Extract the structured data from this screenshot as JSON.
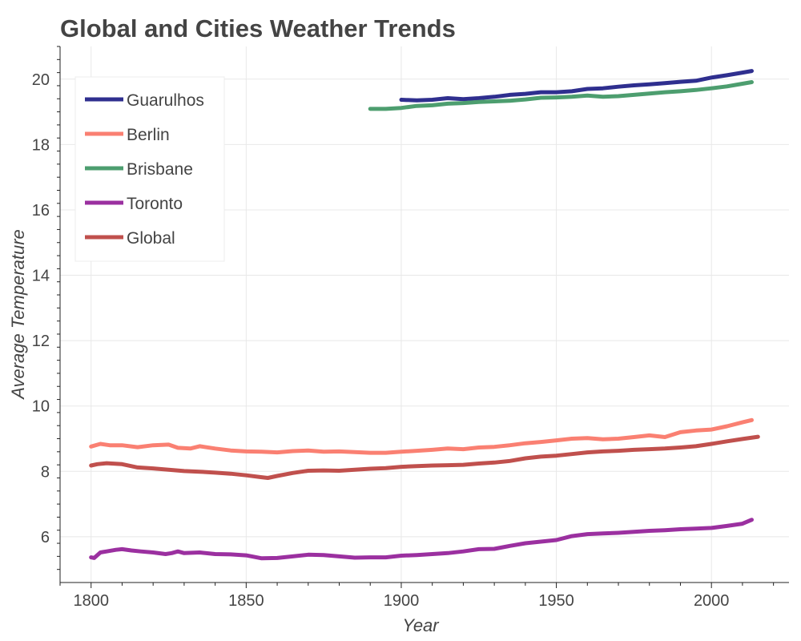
{
  "chart_data": {
    "type": "line",
    "title": "Global and Cities Weather Trends",
    "xlabel": "Year",
    "ylabel": "Average Temperature",
    "xlim": [
      1790,
      2025
    ],
    "ylim": [
      4.6,
      21.0
    ],
    "grid": true,
    "legend_position": "top-left",
    "x_ticks": [
      1800,
      1850,
      1900,
      1950,
      2000
    ],
    "y_ticks": [
      6,
      8,
      10,
      12,
      14,
      16,
      18,
      20
    ],
    "series": [
      {
        "name": "Guarulhos",
        "color": "#2f2f8f",
        "points": [
          [
            1900,
            19.37
          ],
          [
            1905,
            19.35
          ],
          [
            1910,
            19.37
          ],
          [
            1915,
            19.42
          ],
          [
            1920,
            19.39
          ],
          [
            1925,
            19.42
          ],
          [
            1930,
            19.46
          ],
          [
            1935,
            19.52
          ],
          [
            1940,
            19.55
          ],
          [
            1945,
            19.6
          ],
          [
            1950,
            19.6
          ],
          [
            1955,
            19.63
          ],
          [
            1960,
            19.7
          ],
          [
            1965,
            19.72
          ],
          [
            1970,
            19.77
          ],
          [
            1975,
            19.81
          ],
          [
            1980,
            19.84
          ],
          [
            1985,
            19.88
          ],
          [
            1990,
            19.92
          ],
          [
            1995,
            19.95
          ],
          [
            2000,
            20.05
          ],
          [
            2005,
            20.12
          ],
          [
            2010,
            20.2
          ],
          [
            2013,
            20.25
          ]
        ]
      },
      {
        "name": "Berlin",
        "color": "#fa8072",
        "points": [
          [
            1800,
            8.76
          ],
          [
            1803,
            8.84
          ],
          [
            1806,
            8.8
          ],
          [
            1810,
            8.8
          ],
          [
            1815,
            8.74
          ],
          [
            1820,
            8.8
          ],
          [
            1825,
            8.82
          ],
          [
            1828,
            8.72
          ],
          [
            1832,
            8.7
          ],
          [
            1835,
            8.77
          ],
          [
            1840,
            8.7
          ],
          [
            1845,
            8.64
          ],
          [
            1850,
            8.61
          ],
          [
            1855,
            8.6
          ],
          [
            1860,
            8.58
          ],
          [
            1865,
            8.62
          ],
          [
            1870,
            8.64
          ],
          [
            1875,
            8.6
          ],
          [
            1880,
            8.61
          ],
          [
            1885,
            8.59
          ],
          [
            1890,
            8.57
          ],
          [
            1895,
            8.57
          ],
          [
            1900,
            8.6
          ],
          [
            1905,
            8.63
          ],
          [
            1910,
            8.66
          ],
          [
            1915,
            8.7
          ],
          [
            1920,
            8.68
          ],
          [
            1925,
            8.73
          ],
          [
            1930,
            8.75
          ],
          [
            1935,
            8.8
          ],
          [
            1940,
            8.86
          ],
          [
            1945,
            8.9
          ],
          [
            1950,
            8.95
          ],
          [
            1955,
            9.0
          ],
          [
            1960,
            9.02
          ],
          [
            1965,
            8.98
          ],
          [
            1970,
            9.0
          ],
          [
            1975,
            9.05
          ],
          [
            1980,
            9.1
          ],
          [
            1985,
            9.05
          ],
          [
            1990,
            9.2
          ],
          [
            1995,
            9.25
          ],
          [
            2000,
            9.28
          ],
          [
            2005,
            9.38
          ],
          [
            2010,
            9.5
          ],
          [
            2013,
            9.57
          ]
        ]
      },
      {
        "name": "Brisbane",
        "color": "#4d9e6f",
        "points": [
          [
            1890,
            19.09
          ],
          [
            1895,
            19.09
          ],
          [
            1900,
            19.12
          ],
          [
            1905,
            19.18
          ],
          [
            1910,
            19.2
          ],
          [
            1915,
            19.25
          ],
          [
            1920,
            19.27
          ],
          [
            1925,
            19.3
          ],
          [
            1930,
            19.32
          ],
          [
            1935,
            19.34
          ],
          [
            1940,
            19.38
          ],
          [
            1945,
            19.43
          ],
          [
            1950,
            19.44
          ],
          [
            1955,
            19.46
          ],
          [
            1960,
            19.5
          ],
          [
            1965,
            19.46
          ],
          [
            1970,
            19.48
          ],
          [
            1975,
            19.52
          ],
          [
            1980,
            19.56
          ],
          [
            1985,
            19.6
          ],
          [
            1990,
            19.63
          ],
          [
            1995,
            19.67
          ],
          [
            2000,
            19.72
          ],
          [
            2005,
            19.78
          ],
          [
            2010,
            19.86
          ],
          [
            2013,
            19.91
          ]
        ]
      },
      {
        "name": "Toronto",
        "color": "#9b30a0",
        "points": [
          [
            1800,
            5.37
          ],
          [
            1801,
            5.35
          ],
          [
            1803,
            5.52
          ],
          [
            1805,
            5.55
          ],
          [
            1808,
            5.6
          ],
          [
            1810,
            5.62
          ],
          [
            1813,
            5.58
          ],
          [
            1816,
            5.55
          ],
          [
            1820,
            5.52
          ],
          [
            1824,
            5.47
          ],
          [
            1826,
            5.5
          ],
          [
            1828,
            5.55
          ],
          [
            1830,
            5.5
          ],
          [
            1835,
            5.52
          ],
          [
            1840,
            5.47
          ],
          [
            1845,
            5.46
          ],
          [
            1850,
            5.43
          ],
          [
            1855,
            5.34
          ],
          [
            1860,
            5.35
          ],
          [
            1865,
            5.4
          ],
          [
            1870,
            5.45
          ],
          [
            1875,
            5.44
          ],
          [
            1880,
            5.4
          ],
          [
            1885,
            5.36
          ],
          [
            1890,
            5.37
          ],
          [
            1895,
            5.37
          ],
          [
            1900,
            5.42
          ],
          [
            1905,
            5.44
          ],
          [
            1910,
            5.47
          ],
          [
            1915,
            5.5
          ],
          [
            1920,
            5.55
          ],
          [
            1925,
            5.62
          ],
          [
            1930,
            5.63
          ],
          [
            1935,
            5.72
          ],
          [
            1940,
            5.8
          ],
          [
            1945,
            5.85
          ],
          [
            1950,
            5.9
          ],
          [
            1955,
            6.02
          ],
          [
            1960,
            6.08
          ],
          [
            1965,
            6.1
          ],
          [
            1970,
            6.12
          ],
          [
            1975,
            6.15
          ],
          [
            1980,
            6.18
          ],
          [
            1985,
            6.2
          ],
          [
            1990,
            6.23
          ],
          [
            1995,
            6.25
          ],
          [
            2000,
            6.27
          ],
          [
            2005,
            6.33
          ],
          [
            2010,
            6.4
          ],
          [
            2013,
            6.52
          ]
        ]
      },
      {
        "name": "Global",
        "color": "#c0504d",
        "points": [
          [
            1800,
            8.18
          ],
          [
            1802,
            8.22
          ],
          [
            1805,
            8.25
          ],
          [
            1810,
            8.22
          ],
          [
            1815,
            8.12
          ],
          [
            1820,
            8.09
          ],
          [
            1825,
            8.05
          ],
          [
            1830,
            8.01
          ],
          [
            1835,
            7.99
          ],
          [
            1840,
            7.96
          ],
          [
            1845,
            7.93
          ],
          [
            1850,
            7.88
          ],
          [
            1855,
            7.82
          ],
          [
            1857,
            7.8
          ],
          [
            1860,
            7.86
          ],
          [
            1865,
            7.95
          ],
          [
            1870,
            8.02
          ],
          [
            1875,
            8.03
          ],
          [
            1880,
            8.02
          ],
          [
            1885,
            8.05
          ],
          [
            1890,
            8.08
          ],
          [
            1895,
            8.1
          ],
          [
            1900,
            8.14
          ],
          [
            1905,
            8.16
          ],
          [
            1910,
            8.18
          ],
          [
            1915,
            8.19
          ],
          [
            1920,
            8.2
          ],
          [
            1925,
            8.24
          ],
          [
            1930,
            8.27
          ],
          [
            1935,
            8.32
          ],
          [
            1940,
            8.4
          ],
          [
            1945,
            8.45
          ],
          [
            1950,
            8.48
          ],
          [
            1955,
            8.53
          ],
          [
            1960,
            8.58
          ],
          [
            1965,
            8.61
          ],
          [
            1970,
            8.63
          ],
          [
            1975,
            8.66
          ],
          [
            1980,
            8.68
          ],
          [
            1985,
            8.7
          ],
          [
            1990,
            8.73
          ],
          [
            1995,
            8.77
          ],
          [
            2000,
            8.84
          ],
          [
            2005,
            8.92
          ],
          [
            2010,
            8.99
          ],
          [
            2015,
            9.06
          ]
        ]
      }
    ]
  }
}
